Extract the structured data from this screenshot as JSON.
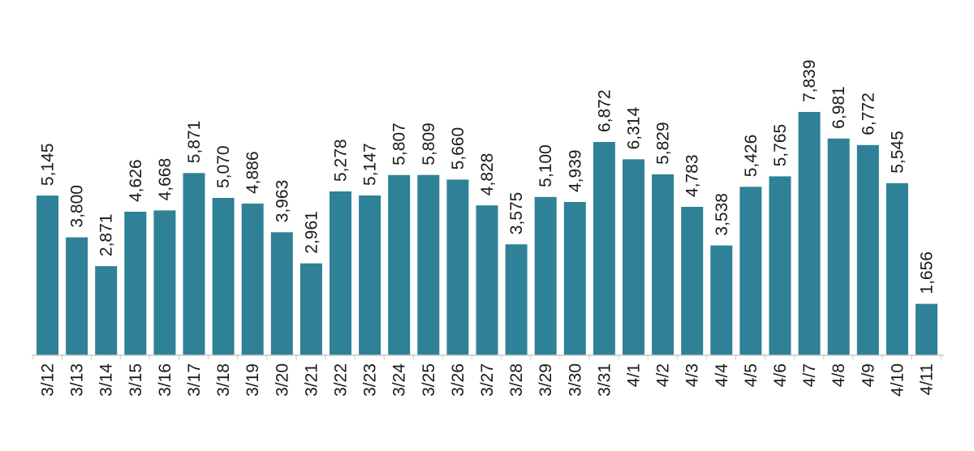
{
  "chart_data": {
    "type": "bar",
    "categories": [
      "3/12",
      "3/13",
      "3/14",
      "3/15",
      "3/16",
      "3/17",
      "3/18",
      "3/19",
      "3/20",
      "3/21",
      "3/22",
      "3/23",
      "3/24",
      "3/25",
      "3/26",
      "3/27",
      "3/28",
      "3/29",
      "3/30",
      "3/31",
      "4/1",
      "4/2",
      "4/3",
      "4/4",
      "4/5",
      "4/6",
      "4/7",
      "4/8",
      "4/9",
      "4/10",
      "4/11"
    ],
    "values": [
      5145,
      3800,
      2871,
      4626,
      4668,
      5871,
      5070,
      4886,
      3963,
      2961,
      5278,
      5147,
      5807,
      5809,
      5660,
      4828,
      3575,
      5100,
      4939,
      6872,
      6314,
      5829,
      4783,
      3538,
      5426,
      5765,
      7839,
      6981,
      6772,
      5545,
      1656
    ],
    "value_labels": [
      "5,145",
      "3,800",
      "2,871",
      "4,626",
      "4,668",
      "5,871",
      "5,070",
      "4,886",
      "3,963",
      "2,961",
      "5,278",
      "5,147",
      "5,807",
      "5,809",
      "5,660",
      "4,828",
      "3,575",
      "5,100",
      "4,939",
      "6,872",
      "6,314",
      "5,829",
      "4,783",
      "3,538",
      "5,426",
      "5,765",
      "7,839",
      "6,981",
      "6,772",
      "5,545",
      "1,656"
    ],
    "title": "",
    "xlabel": "",
    "ylabel": "",
    "ylim": [
      0,
      7839
    ],
    "grid": false,
    "legend": "none",
    "bar_color": "#2e8196",
    "axis_color": "#c8c8c8"
  }
}
